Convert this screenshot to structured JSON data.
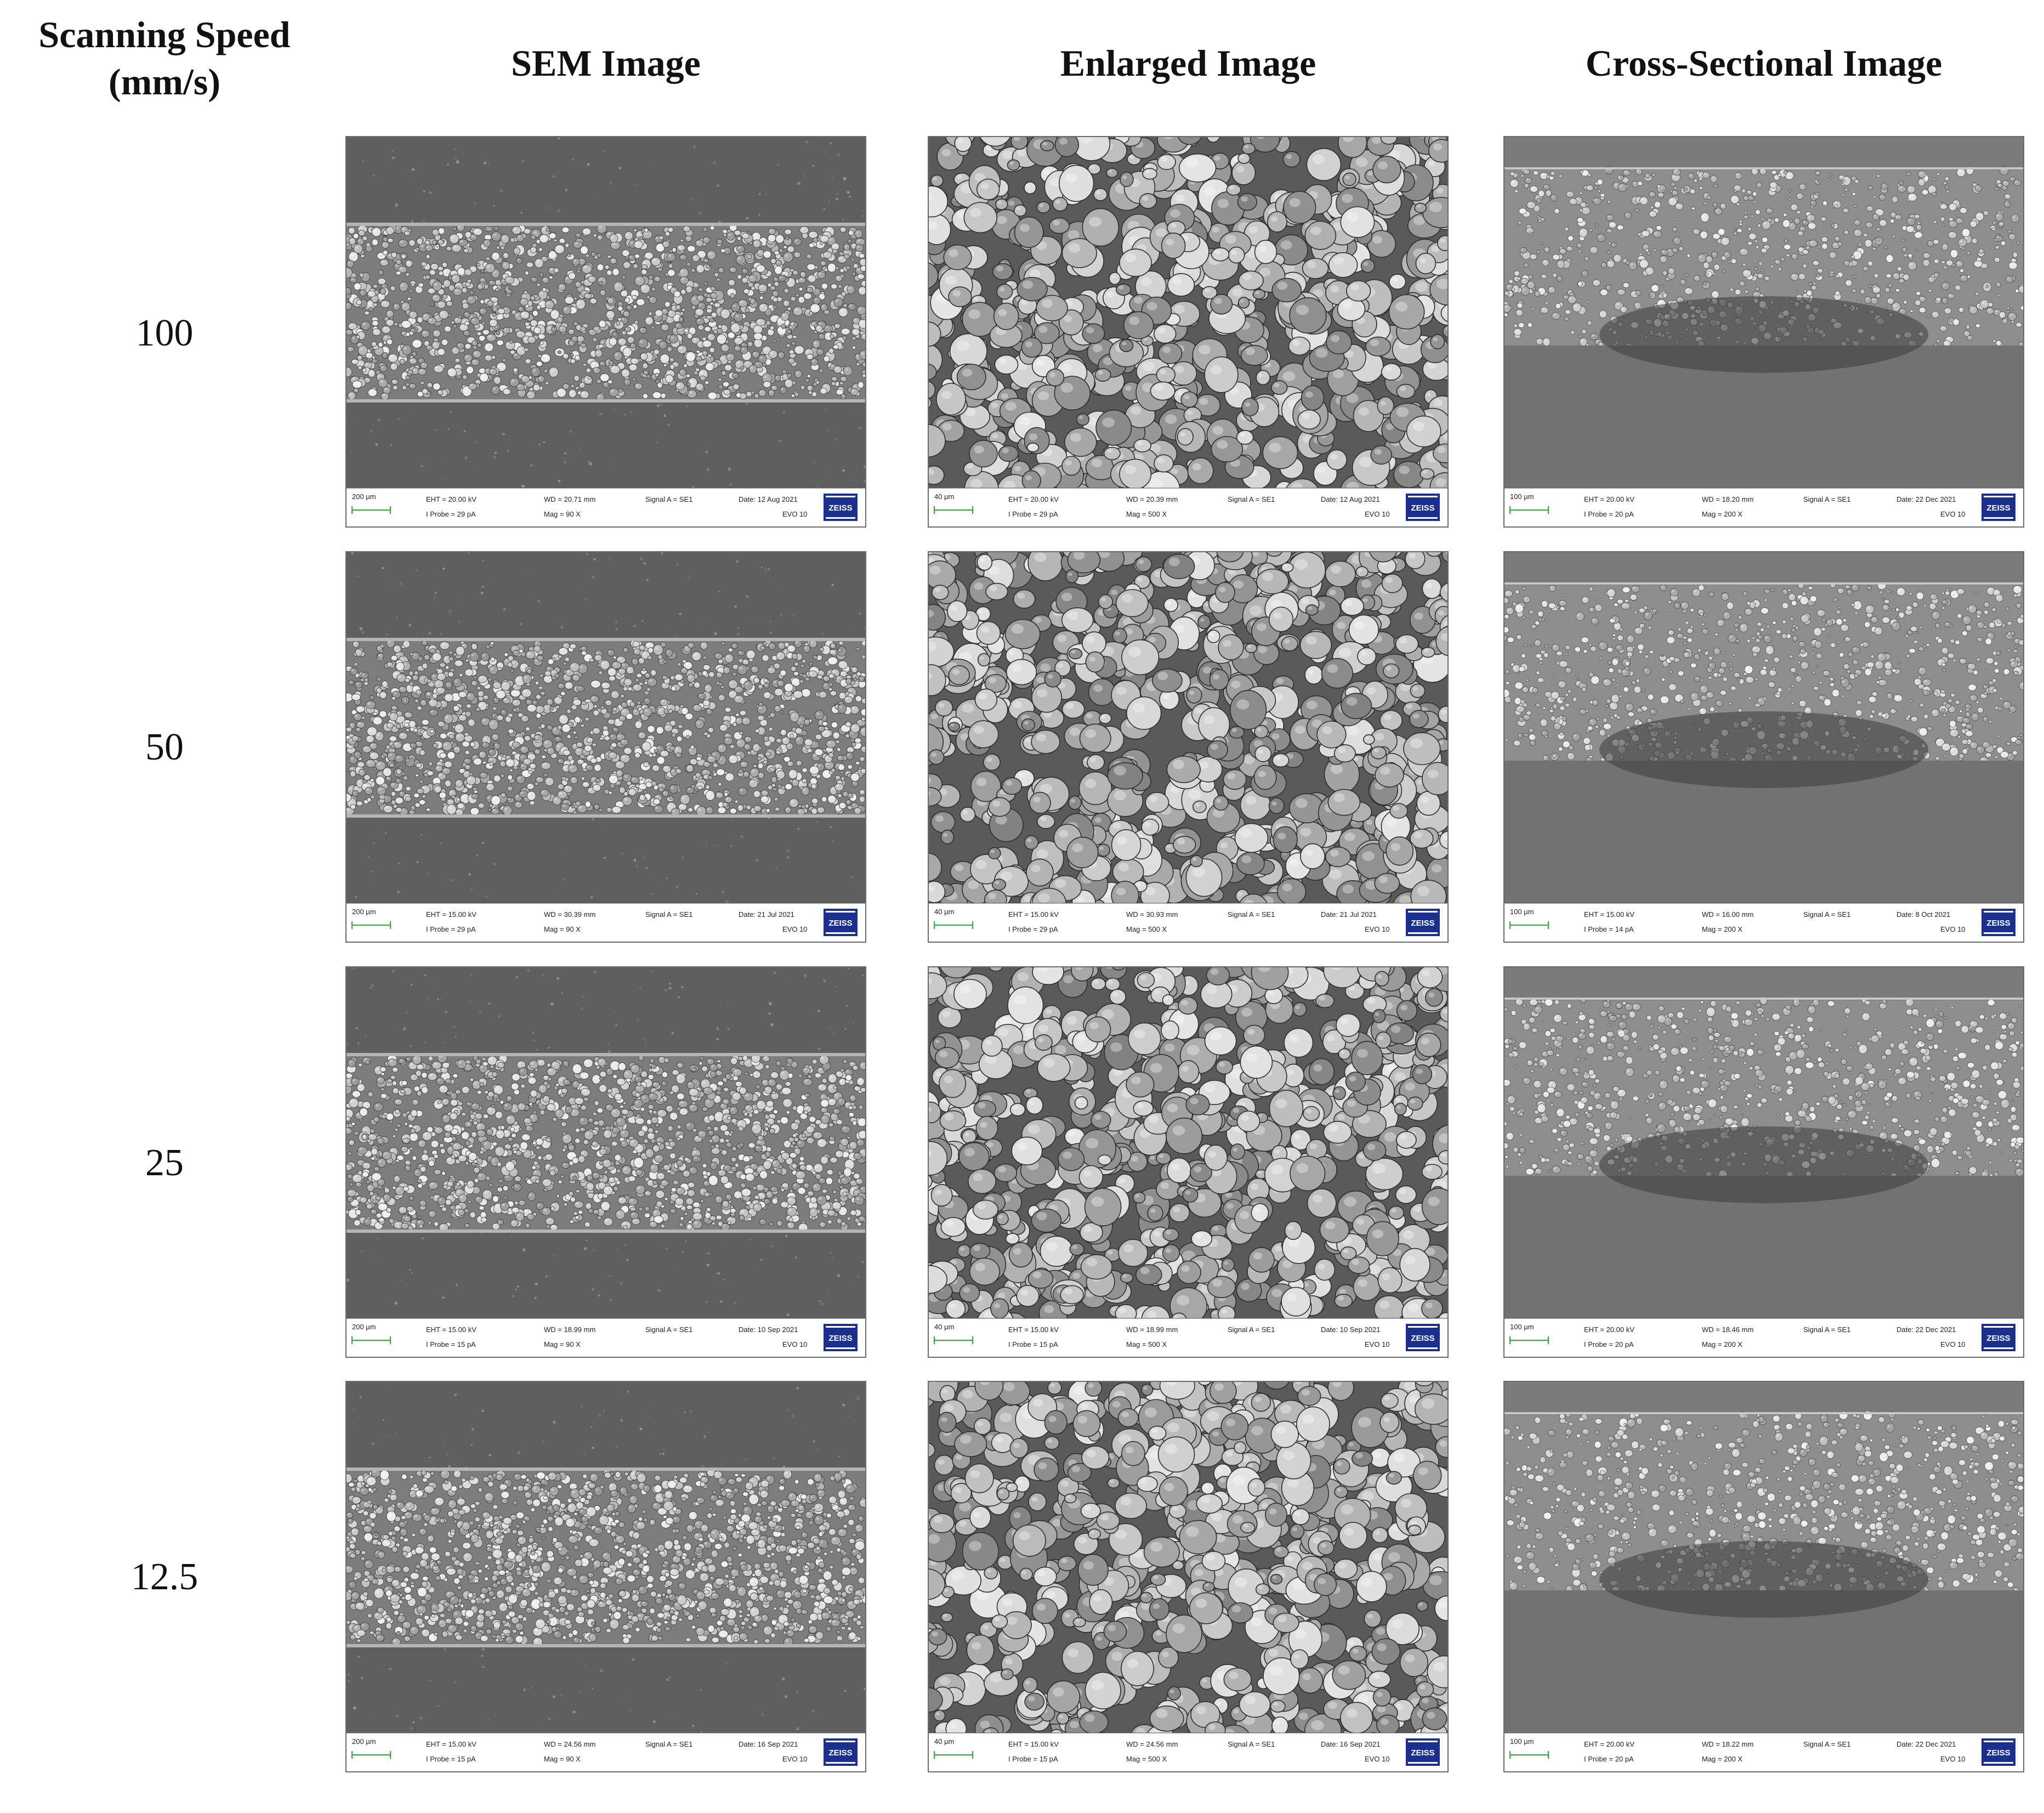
{
  "headers": {
    "speed": [
      "Scanning Speed",
      "(mm/s)"
    ],
    "sem": "SEM Image",
    "enlarged": "Enlarged Image",
    "cross": "Cross-Sectional Image"
  },
  "rows": [
    {
      "speed": "100",
      "panels": [
        {
          "type": "sem",
          "scale": "200 µm",
          "eht": "EHT = 20.00 kV",
          "iprobe": "I Probe =    29 pA",
          "wd": "WD = 20.71 mm",
          "mag": "Mag =    90 X",
          "signal": "Signal A = SE1",
          "date": "Date: 12 Aug 2021",
          "model": "EVO 10"
        },
        {
          "type": "enl",
          "scale": "40 µm",
          "eht": "EHT = 20.00 kV",
          "iprobe": "I Probe =    29 pA",
          "wd": "WD = 20.39 mm",
          "mag": "Mag =   500 X",
          "signal": "Signal A = SE1",
          "date": "Date: 12 Aug 2021",
          "model": "EVO 10"
        },
        {
          "type": "cross",
          "scale": "100 µm",
          "eht": "EHT = 20.00 kV",
          "iprobe": "I Probe =    20 pA",
          "wd": "WD = 18.20 mm",
          "mag": "Mag =   200 X",
          "signal": "Signal A = SE1",
          "date": "Date: 22 Dec 2021",
          "model": "EVO 10"
        }
      ]
    },
    {
      "speed": "50",
      "panels": [
        {
          "type": "sem",
          "scale": "200 µm",
          "eht": "EHT = 15.00 kV",
          "iprobe": "I Probe =    29 pA",
          "wd": "WD = 30.39 mm",
          "mag": "Mag =    90 X",
          "signal": "Signal A = SE1",
          "date": "Date: 21 Jul 2021",
          "model": "EVO 10"
        },
        {
          "type": "enl",
          "scale": "40 µm",
          "eht": "EHT = 15.00 kV",
          "iprobe": "I Probe =    29 pA",
          "wd": "WD = 30.93 mm",
          "mag": "Mag =   500 X",
          "signal": "Signal A = SE1",
          "date": "Date: 21 Jul 2021",
          "model": "EVO 10"
        },
        {
          "type": "cross",
          "scale": "100 µm",
          "eht": "EHT = 15.00 kV",
          "iprobe": "I Probe =    14 pA",
          "wd": "WD = 16.00 mm",
          "mag": "Mag =   200 X",
          "signal": "Signal A = SE1",
          "date": "Date: 8 Oct 2021",
          "model": "EVO 10"
        }
      ]
    },
    {
      "speed": "25",
      "panels": [
        {
          "type": "sem",
          "scale": "200 µm",
          "eht": "EHT = 15.00 kV",
          "iprobe": "I Probe =    15 pA",
          "wd": "WD = 18.99 mm",
          "mag": "Mag =    90 X",
          "signal": "Signal A = SE1",
          "date": "Date: 10 Sep 2021",
          "model": "EVO 10"
        },
        {
          "type": "enl",
          "scale": "40 µm",
          "eht": "EHT = 15.00 kV",
          "iprobe": "I Probe =    15 pA",
          "wd": "WD = 18.99 mm",
          "mag": "Mag =   500 X",
          "signal": "Signal A = SE1",
          "date": "Date: 10 Sep 2021",
          "model": "EVO 10"
        },
        {
          "type": "cross",
          "scale": "100 µm",
          "eht": "EHT = 20.00 kV",
          "iprobe": "I Probe =    20 pA",
          "wd": "WD = 18.46 mm",
          "mag": "Mag =   200 X",
          "signal": "Signal A = SE1",
          "date": "Date: 22 Dec 2021",
          "model": "EVO 10"
        }
      ]
    },
    {
      "speed": "12.5",
      "panels": [
        {
          "type": "sem",
          "scale": "200 µm",
          "eht": "EHT = 15.00 kV",
          "iprobe": "I Probe =    15 pA",
          "wd": "WD = 24.56 mm",
          "mag": "Mag =    90 X",
          "signal": "Signal A = SE1",
          "date": "Date: 16 Sep 2021",
          "model": "EVO 10"
        },
        {
          "type": "enl",
          "scale": "40 µm",
          "eht": "EHT = 15.00 kV",
          "iprobe": "I Probe =    15 pA",
          "wd": "WD = 24.56 mm",
          "mag": "Mag =   500 X",
          "signal": "Signal A = SE1",
          "date": "Date: 16 Sep 2021",
          "model": "EVO 10"
        },
        {
          "type": "cross",
          "scale": "100 µm",
          "eht": "EHT = 20.00 kV",
          "iprobe": "I Probe =    20 pA",
          "wd": "WD = 18.22 mm",
          "mag": "Mag =   200 X",
          "signal": "Signal A = SE1",
          "date": "Date: 22 Dec 2021",
          "model": "EVO 10"
        }
      ]
    }
  ],
  "logo_text": "ZEISS"
}
